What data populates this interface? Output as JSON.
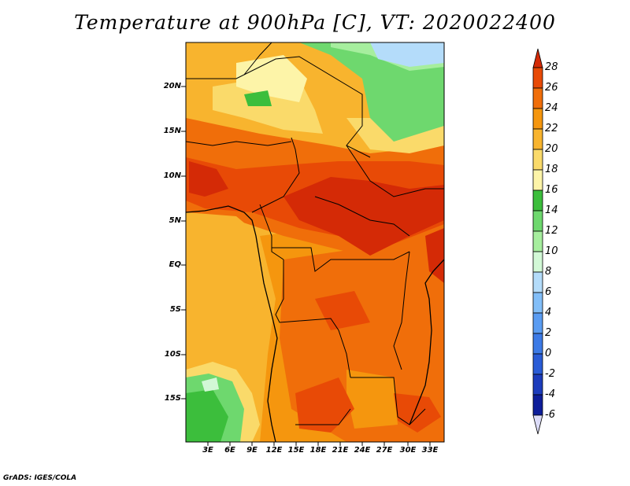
{
  "title": "Temperature at 900hPa [C], VT: 2020022400",
  "credit": "GrADS: IGES/COLA",
  "lat_labels": [
    "20N",
    "15N",
    "10N",
    "5N",
    "EQ",
    "5S",
    "10S",
    "15S"
  ],
  "lon_labels": [
    "3E",
    "6E",
    "9E",
    "12E",
    "15E",
    "18E",
    "21E",
    "24E",
    "27E",
    "30E",
    "33E"
  ],
  "colorbar": {
    "levels": [
      "28",
      "26",
      "24",
      "22",
      "20",
      "18",
      "16",
      "14",
      "12",
      "10",
      "8",
      "6",
      "4",
      "2",
      "0",
      "-2",
      "-4",
      "-6"
    ],
    "colors": [
      "#d42a06",
      "#e84a06",
      "#f06e0a",
      "#f5960e",
      "#f8b42e",
      "#fada6a",
      "#fdf4a8",
      "#3cbe3c",
      "#6ed86e",
      "#a6ee9e",
      "#d2f8d6",
      "#b4dcfa",
      "#82bef8",
      "#5a9cf2",
      "#3c7ae6",
      "#2a5cd6",
      "#1c3cbc",
      "#0e1e9a",
      "#0a0a6e"
    ],
    "over_color": "#d42a06",
    "under_color": "#dcdcf8"
  }
}
